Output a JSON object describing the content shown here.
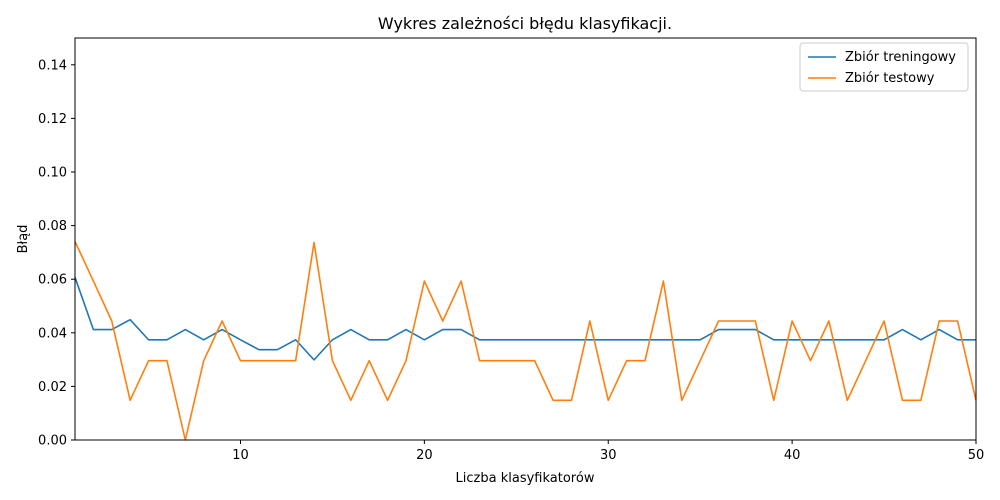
{
  "chart_data": {
    "type": "line",
    "title": "Wykres zależności błędu klasyfikacji.",
    "xlabel": "Liczba klasyfikatorów",
    "ylabel": "Błąd",
    "xlim": [
      1,
      50
    ],
    "ylim": [
      0,
      0.15
    ],
    "xticks": [
      10,
      20,
      30,
      40,
      50
    ],
    "yticks": [
      0.0,
      0.02,
      0.04,
      0.06,
      0.08,
      0.1,
      0.12,
      0.14
    ],
    "ytick_labels": [
      "0.00",
      "0.02",
      "0.04",
      "0.06",
      "0.08",
      "0.10",
      "0.12",
      "0.14"
    ],
    "grid": false,
    "legend_position": "top-right",
    "x": [
      1,
      2,
      3,
      4,
      5,
      6,
      7,
      8,
      9,
      10,
      11,
      12,
      13,
      14,
      15,
      16,
      17,
      18,
      19,
      20,
      21,
      22,
      23,
      24,
      25,
      26,
      27,
      28,
      29,
      30,
      31,
      32,
      33,
      34,
      35,
      36,
      37,
      38,
      39,
      40,
      41,
      42,
      43,
      44,
      45,
      46,
      47,
      48,
      49,
      50
    ],
    "series": [
      {
        "name": "Zbiór treningowy",
        "color": "#1f77b4",
        "values": [
          0.0607,
          0.0412,
          0.0412,
          0.0449,
          0.0374,
          0.0374,
          0.0412,
          0.0374,
          0.0412,
          0.0374,
          0.0337,
          0.0337,
          0.0374,
          0.0299,
          0.0374,
          0.0412,
          0.0374,
          0.0374,
          0.0412,
          0.0374,
          0.0412,
          0.0412,
          0.0374,
          0.0374,
          0.0374,
          0.0374,
          0.0374,
          0.0374,
          0.0374,
          0.0374,
          0.0374,
          0.0374,
          0.0374,
          0.0374,
          0.0374,
          0.0412,
          0.0412,
          0.0412,
          0.0374,
          0.0374,
          0.0374,
          0.0374,
          0.0374,
          0.0374,
          0.0374,
          0.0412,
          0.0374,
          0.0412,
          0.0374,
          0.0374
        ]
      },
      {
        "name": "Zbiór testowy",
        "color": "#ff7f0e",
        "values": [
          0.0741,
          0.0593,
          0.0444,
          0.0148,
          0.0296,
          0.0296,
          0.0,
          0.0296,
          0.0444,
          0.0296,
          0.0296,
          0.0296,
          0.0296,
          0.0737,
          0.0296,
          0.0148,
          0.0296,
          0.0148,
          0.0296,
          0.0593,
          0.0444,
          0.0593,
          0.0296,
          0.0296,
          0.0296,
          0.0296,
          0.0148,
          0.0148,
          0.0444,
          0.0148,
          0.0296,
          0.0296,
          0.0593,
          0.0148,
          0.0296,
          0.0444,
          0.0444,
          0.0444,
          0.0148,
          0.0444,
          0.0296,
          0.0444,
          0.0148,
          0.0296,
          0.0444,
          0.0148,
          0.0148,
          0.0444,
          0.0444,
          0.0148
        ]
      }
    ]
  }
}
